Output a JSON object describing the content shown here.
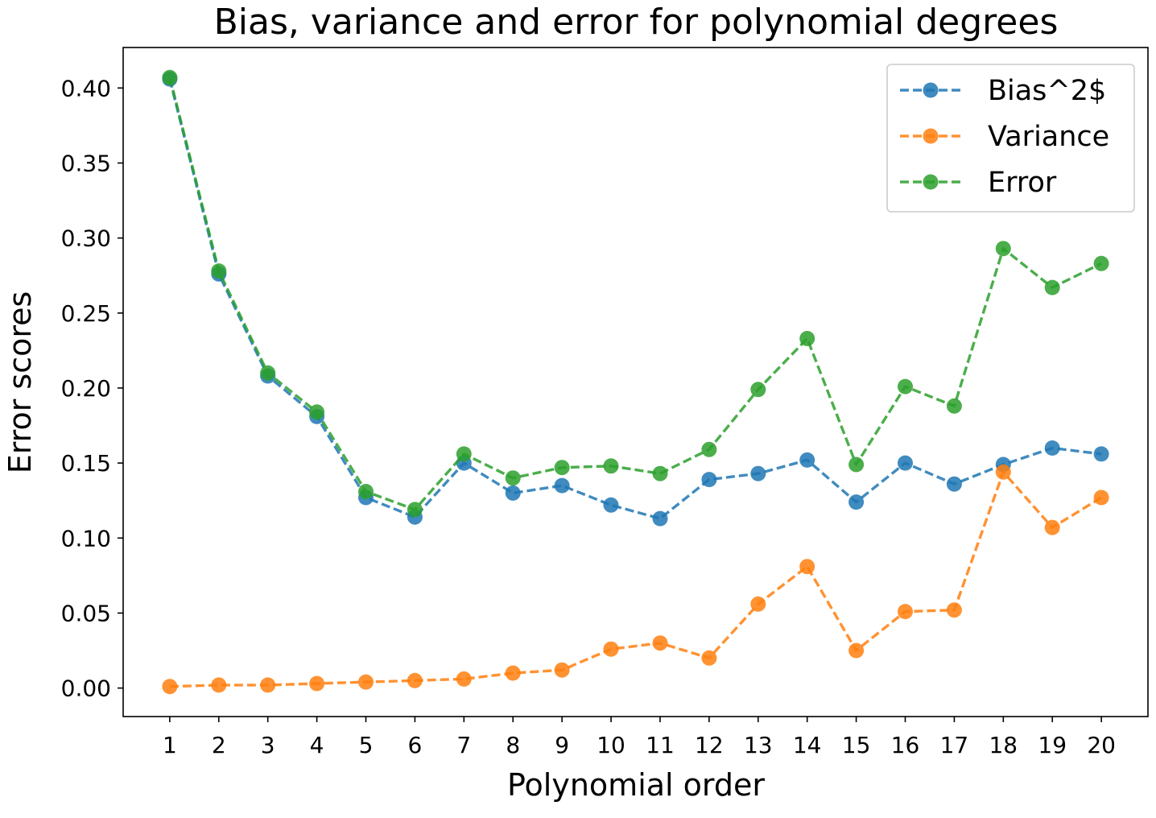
{
  "chart_data": {
    "type": "line",
    "title": "Bias, variance and error for polynomial degrees",
    "xlabel": "Polynomial order",
    "ylabel": "Error scores",
    "x": [
      1,
      2,
      3,
      4,
      5,
      6,
      7,
      8,
      9,
      10,
      11,
      12,
      13,
      14,
      15,
      16,
      17,
      18,
      19,
      20
    ],
    "x_tick_labels": [
      "1",
      "2",
      "3",
      "4",
      "5",
      "6",
      "7",
      "8",
      "9",
      "10",
      "11",
      "12",
      "13",
      "14",
      "15",
      "16",
      "17",
      "18",
      "19",
      "20"
    ],
    "xlim": [
      0.05,
      20.95
    ],
    "ylim": [
      -0.019,
      0.427
    ],
    "y_ticks": [
      0.0,
      0.05,
      0.1,
      0.15,
      0.2,
      0.25,
      0.3,
      0.35,
      0.4
    ],
    "y_tick_labels": [
      "0.00",
      "0.05",
      "0.10",
      "0.15",
      "0.20",
      "0.25",
      "0.30",
      "0.35",
      "0.40"
    ],
    "grid": false,
    "legend_position": "top-right",
    "line_style": "dashed",
    "marker": "circle",
    "series": [
      {
        "name": "Bias^2$",
        "color": "#1f77b4",
        "values": [
          0.406,
          0.276,
          0.208,
          0.181,
          0.127,
          0.114,
          0.15,
          0.13,
          0.135,
          0.122,
          0.113,
          0.139,
          0.143,
          0.152,
          0.124,
          0.15,
          0.136,
          0.149,
          0.16,
          0.156
        ]
      },
      {
        "name": "Variance",
        "color": "#ff7f0e",
        "values": [
          0.001,
          0.002,
          0.002,
          0.003,
          0.004,
          0.005,
          0.006,
          0.01,
          0.012,
          0.026,
          0.03,
          0.02,
          0.056,
          0.081,
          0.025,
          0.051,
          0.052,
          0.144,
          0.107,
          0.127
        ]
      },
      {
        "name": "Error",
        "color": "#2ca02c",
        "values": [
          0.407,
          0.278,
          0.21,
          0.184,
          0.131,
          0.119,
          0.156,
          0.14,
          0.147,
          0.148,
          0.143,
          0.159,
          0.199,
          0.233,
          0.149,
          0.201,
          0.188,
          0.293,
          0.267,
          0.283
        ]
      }
    ]
  }
}
